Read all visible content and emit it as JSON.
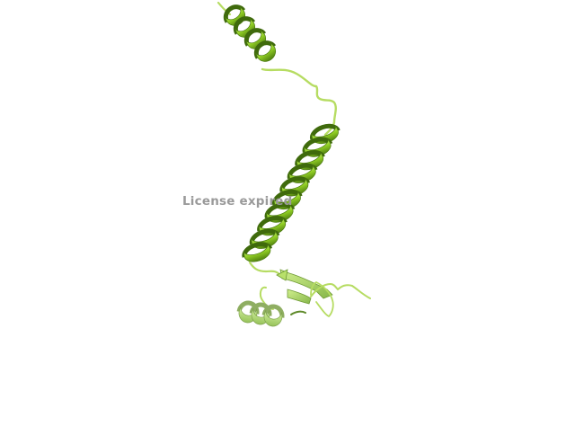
{
  "overlay": {
    "license_text": "License expired"
  },
  "structure": {
    "type": "protein-cartoon",
    "elements": [
      "helix",
      "coil",
      "helix",
      "coil",
      "beta-strand",
      "helix",
      "coil"
    ]
  },
  "colors": {
    "background": "#ffffff",
    "helix_light": "#a6dc3c",
    "helix_mid": "#7fc01e",
    "helix_dark": "#4f7f10",
    "strand_light": "#bfe87a",
    "strand_dark": "#7fa84a",
    "coil": "#b6dc62",
    "overlay_text": "#9a9a9a"
  }
}
